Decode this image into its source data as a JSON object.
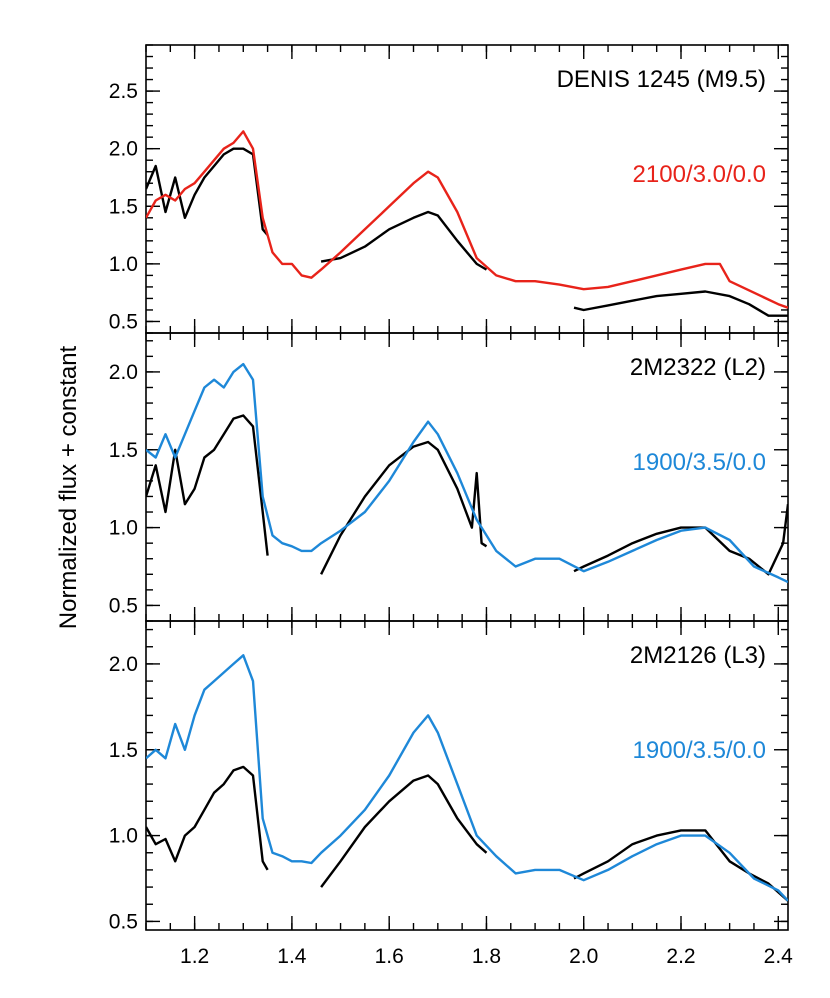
{
  "chart_data": {
    "type": "line",
    "ylabel": "Normalized flux + constant",
    "xlim": [
      1.1,
      2.42
    ],
    "x_ticks": [
      "1.2",
      "1.4",
      "1.6",
      "1.8",
      "2.0",
      "2.2",
      "2.4"
    ],
    "x_tick_values": [
      1.2,
      1.4,
      1.6,
      1.8,
      2.0,
      2.2,
      2.4
    ],
    "panels": [
      {
        "object_label": "DENIS 1245 (M9.5)",
        "model_label": "2100/3.0/0.0",
        "model_color": "#e8231a",
        "ylim": [
          0.4,
          2.9
        ],
        "y_ticks": [
          "0.5",
          "1.0",
          "1.5",
          "2.0",
          "2.5"
        ],
        "y_tick_values": [
          0.5,
          1.0,
          1.5,
          2.0,
          2.5
        ],
        "series": [
          {
            "color": "#000000",
            "segments": [
              {
                "x": [
                  1.1,
                  1.12,
                  1.14,
                  1.16,
                  1.18,
                  1.2,
                  1.22,
                  1.24,
                  1.26,
                  1.28,
                  1.3,
                  1.32,
                  1.34,
                  1.35
                ],
                "y": [
                  1.65,
                  1.85,
                  1.45,
                  1.75,
                  1.4,
                  1.6,
                  1.75,
                  1.85,
                  1.95,
                  2.0,
                  2.0,
                  1.95,
                  1.3,
                  1.25
                ]
              },
              {
                "x": [
                  1.46,
                  1.5,
                  1.55,
                  1.6,
                  1.65,
                  1.68,
                  1.7,
                  1.74,
                  1.78,
                  1.8
                ],
                "y": [
                  1.02,
                  1.05,
                  1.15,
                  1.3,
                  1.4,
                  1.45,
                  1.42,
                  1.2,
                  1.0,
                  0.95
                ]
              },
              {
                "x": [
                  1.98,
                  2.0,
                  2.05,
                  2.1,
                  2.15,
                  2.2,
                  2.25,
                  2.3,
                  2.34,
                  2.38,
                  2.42
                ],
                "y": [
                  0.62,
                  0.6,
                  0.64,
                  0.68,
                  0.72,
                  0.74,
                  0.76,
                  0.72,
                  0.65,
                  0.55,
                  0.55
                ]
              }
            ]
          },
          {
            "color": "#e8231a",
            "segments": [
              {
                "x": [
                  1.1,
                  1.12,
                  1.14,
                  1.16,
                  1.18,
                  1.2,
                  1.22,
                  1.24,
                  1.26,
                  1.28,
                  1.3,
                  1.32,
                  1.34,
                  1.36,
                  1.38,
                  1.4,
                  1.42,
                  1.44,
                  1.46,
                  1.5,
                  1.55,
                  1.6,
                  1.65,
                  1.68,
                  1.7,
                  1.74,
                  1.78,
                  1.82,
                  1.86,
                  1.9,
                  1.95,
                  2.0,
                  2.05,
                  2.1,
                  2.15,
                  2.2,
                  2.25,
                  2.28,
                  2.3,
                  2.35,
                  2.4,
                  2.42
                ],
                "y": [
                  1.4,
                  1.55,
                  1.6,
                  1.55,
                  1.65,
                  1.7,
                  1.8,
                  1.9,
                  2.0,
                  2.05,
                  2.15,
                  2.0,
                  1.4,
                  1.1,
                  1.0,
                  1.0,
                  0.9,
                  0.88,
                  0.95,
                  1.1,
                  1.3,
                  1.5,
                  1.7,
                  1.8,
                  1.75,
                  1.45,
                  1.05,
                  0.9,
                  0.85,
                  0.85,
                  0.82,
                  0.78,
                  0.8,
                  0.85,
                  0.9,
                  0.95,
                  1.0,
                  1.0,
                  0.85,
                  0.75,
                  0.65,
                  0.62
                ]
              }
            ]
          }
        ]
      },
      {
        "object_label": "2M2322 (L2)",
        "model_label": "1900/3.5/0.0",
        "model_color": "#1e88d8",
        "ylim": [
          0.4,
          2.25
        ],
        "y_ticks": [
          "0.5",
          "1.0",
          "1.5",
          "2.0"
        ],
        "y_tick_values": [
          0.5,
          1.0,
          1.5,
          2.0
        ],
        "series": [
          {
            "color": "#000000",
            "segments": [
              {
                "x": [
                  1.1,
                  1.12,
                  1.14,
                  1.16,
                  1.18,
                  1.2,
                  1.22,
                  1.24,
                  1.26,
                  1.28,
                  1.3,
                  1.32,
                  1.34,
                  1.35
                ],
                "y": [
                  1.2,
                  1.4,
                  1.1,
                  1.5,
                  1.15,
                  1.25,
                  1.45,
                  1.5,
                  1.6,
                  1.7,
                  1.72,
                  1.65,
                  1.1,
                  0.82
                ]
              },
              {
                "x": [
                  1.46,
                  1.5,
                  1.55,
                  1.6,
                  1.65,
                  1.68,
                  1.7,
                  1.74,
                  1.77,
                  1.78,
                  1.79,
                  1.8
                ],
                "y": [
                  0.7,
                  0.95,
                  1.2,
                  1.4,
                  1.52,
                  1.55,
                  1.5,
                  1.25,
                  1.0,
                  1.35,
                  0.9,
                  0.88
                ]
              },
              {
                "x": [
                  1.98,
                  2.0,
                  2.05,
                  2.1,
                  2.15,
                  2.2,
                  2.25,
                  2.3,
                  2.34,
                  2.38,
                  2.41,
                  2.42
                ],
                "y": [
                  0.72,
                  0.75,
                  0.82,
                  0.9,
                  0.96,
                  1.0,
                  1.0,
                  0.85,
                  0.8,
                  0.7,
                  0.9,
                  1.15
                ]
              }
            ]
          },
          {
            "color": "#1e88d8",
            "segments": [
              {
                "x": [
                  1.1,
                  1.12,
                  1.14,
                  1.16,
                  1.18,
                  1.2,
                  1.22,
                  1.24,
                  1.26,
                  1.28,
                  1.3,
                  1.32,
                  1.34,
                  1.36,
                  1.38,
                  1.4,
                  1.42,
                  1.44,
                  1.46,
                  1.5,
                  1.55,
                  1.6,
                  1.65,
                  1.68,
                  1.7,
                  1.74,
                  1.78,
                  1.82,
                  1.86,
                  1.9,
                  1.95,
                  2.0,
                  2.05,
                  2.1,
                  2.15,
                  2.2,
                  2.25,
                  2.3,
                  2.35,
                  2.4,
                  2.42
                ],
                "y": [
                  1.5,
                  1.45,
                  1.6,
                  1.45,
                  1.6,
                  1.75,
                  1.9,
                  1.95,
                  1.9,
                  2.0,
                  2.05,
                  1.95,
                  1.2,
                  0.95,
                  0.9,
                  0.88,
                  0.85,
                  0.85,
                  0.9,
                  0.98,
                  1.1,
                  1.3,
                  1.55,
                  1.68,
                  1.6,
                  1.35,
                  1.05,
                  0.85,
                  0.75,
                  0.8,
                  0.8,
                  0.72,
                  0.78,
                  0.85,
                  0.92,
                  0.98,
                  1.0,
                  0.92,
                  0.75,
                  0.68,
                  0.65
                ]
              }
            ]
          }
        ]
      },
      {
        "object_label": "2M2126 (L3)",
        "model_label": "1900/3.5/0.0",
        "model_color": "#1e88d8",
        "ylim": [
          0.45,
          2.25
        ],
        "y_ticks": [
          "0.5",
          "1.0",
          "1.5",
          "2.0"
        ],
        "y_tick_values": [
          0.5,
          1.0,
          1.5,
          2.0
        ],
        "series": [
          {
            "color": "#000000",
            "segments": [
              {
                "x": [
                  1.1,
                  1.12,
                  1.14,
                  1.16,
                  1.18,
                  1.2,
                  1.22,
                  1.24,
                  1.26,
                  1.28,
                  1.3,
                  1.32,
                  1.34,
                  1.35
                ],
                "y": [
                  1.05,
                  0.95,
                  0.98,
                  0.85,
                  1.0,
                  1.05,
                  1.15,
                  1.25,
                  1.3,
                  1.38,
                  1.4,
                  1.35,
                  0.85,
                  0.8
                ]
              },
              {
                "x": [
                  1.46,
                  1.5,
                  1.55,
                  1.6,
                  1.65,
                  1.68,
                  1.7,
                  1.74,
                  1.78,
                  1.8
                ],
                "y": [
                  0.7,
                  0.85,
                  1.05,
                  1.2,
                  1.32,
                  1.35,
                  1.3,
                  1.1,
                  0.95,
                  0.9
                ]
              },
              {
                "x": [
                  1.98,
                  2.0,
                  2.05,
                  2.1,
                  2.15,
                  2.2,
                  2.25,
                  2.3,
                  2.34,
                  2.38,
                  2.42
                ],
                "y": [
                  0.75,
                  0.78,
                  0.85,
                  0.95,
                  1.0,
                  1.03,
                  1.03,
                  0.85,
                  0.78,
                  0.72,
                  0.62
                ]
              }
            ]
          },
          {
            "color": "#1e88d8",
            "segments": [
              {
                "x": [
                  1.1,
                  1.12,
                  1.14,
                  1.16,
                  1.18,
                  1.2,
                  1.22,
                  1.24,
                  1.26,
                  1.28,
                  1.3,
                  1.32,
                  1.34,
                  1.36,
                  1.38,
                  1.4,
                  1.42,
                  1.44,
                  1.46,
                  1.5,
                  1.55,
                  1.6,
                  1.65,
                  1.68,
                  1.7,
                  1.74,
                  1.78,
                  1.82,
                  1.86,
                  1.9,
                  1.95,
                  2.0,
                  2.05,
                  2.1,
                  2.15,
                  2.2,
                  2.25,
                  2.3,
                  2.35,
                  2.4,
                  2.42
                ],
                "y": [
                  1.45,
                  1.5,
                  1.45,
                  1.65,
                  1.5,
                  1.7,
                  1.85,
                  1.9,
                  1.95,
                  2.0,
                  2.05,
                  1.9,
                  1.1,
                  0.9,
                  0.88,
                  0.85,
                  0.85,
                  0.84,
                  0.9,
                  1.0,
                  1.15,
                  1.35,
                  1.6,
                  1.7,
                  1.6,
                  1.3,
                  1.0,
                  0.88,
                  0.78,
                  0.8,
                  0.8,
                  0.74,
                  0.8,
                  0.88,
                  0.95,
                  1.0,
                  1.0,
                  0.9,
                  0.75,
                  0.68,
                  0.62
                ]
              }
            ]
          }
        ]
      }
    ]
  }
}
